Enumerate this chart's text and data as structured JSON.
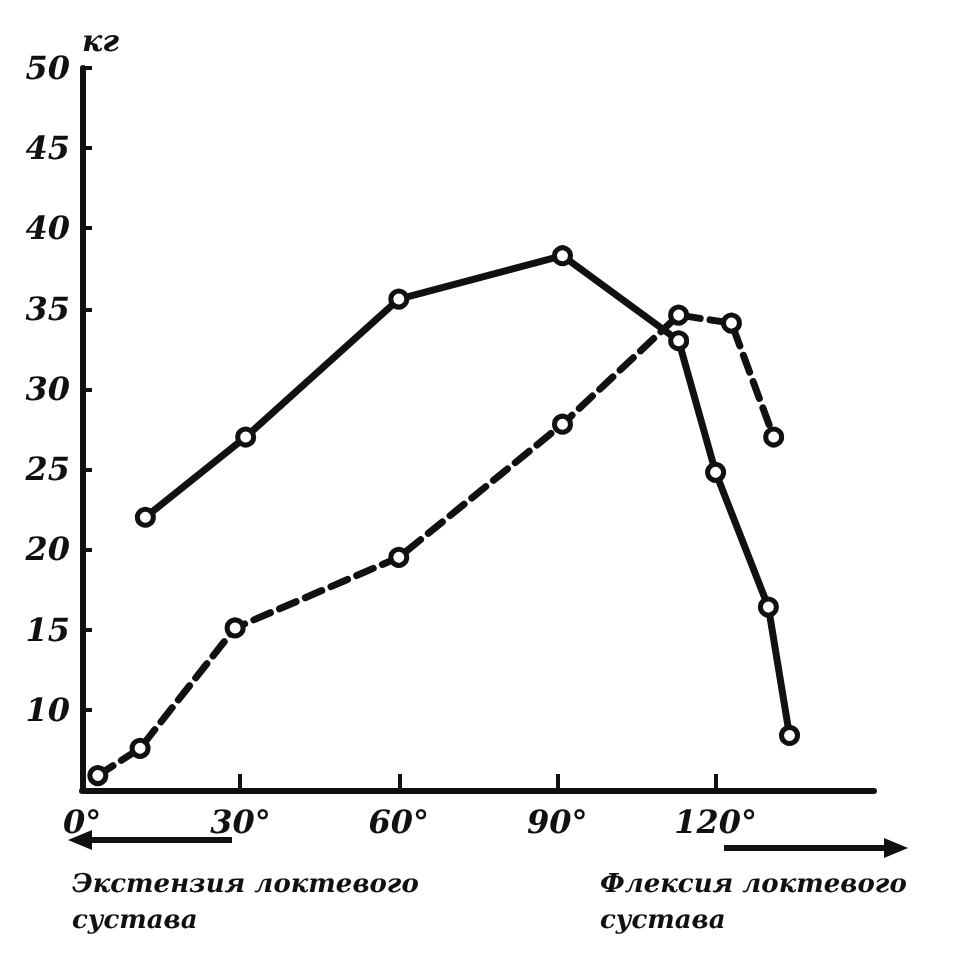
{
  "chart_data": {
    "type": "line",
    "ylabel": "кг",
    "xlim": [
      0,
      150
    ],
    "ylim": [
      5,
      50
    ],
    "xticks": [
      {
        "value": 0,
        "label": "0°"
      },
      {
        "value": 30,
        "label": "30°"
      },
      {
        "value": 60,
        "label": "60°"
      },
      {
        "value": 90,
        "label": "90°"
      },
      {
        "value": 120,
        "label": "120°"
      }
    ],
    "yticks": [
      10,
      15,
      20,
      25,
      30,
      35,
      40,
      45,
      50
    ],
    "series": [
      {
        "color": "#111111",
        "line_style": "solid",
        "x": [
          12,
          31,
          60,
          91,
          113,
          120,
          130,
          134
        ],
        "values": [
          22,
          27,
          35.6,
          38.3,
          33,
          24.8,
          16.4,
          8.4
        ]
      },
      {
        "color": "#111111",
        "line_style": "dashed",
        "x": [
          3,
          11,
          29,
          60,
          91,
          113,
          123,
          131
        ],
        "values": [
          5.9,
          7.6,
          15.1,
          19.5,
          27.8,
          34.6,
          34.1,
          27
        ]
      }
    ],
    "marker": "circle",
    "grid": false,
    "annotations": [
      "Экстензия локтевого сустава",
      "Флексия локтевого сустава"
    ]
  }
}
